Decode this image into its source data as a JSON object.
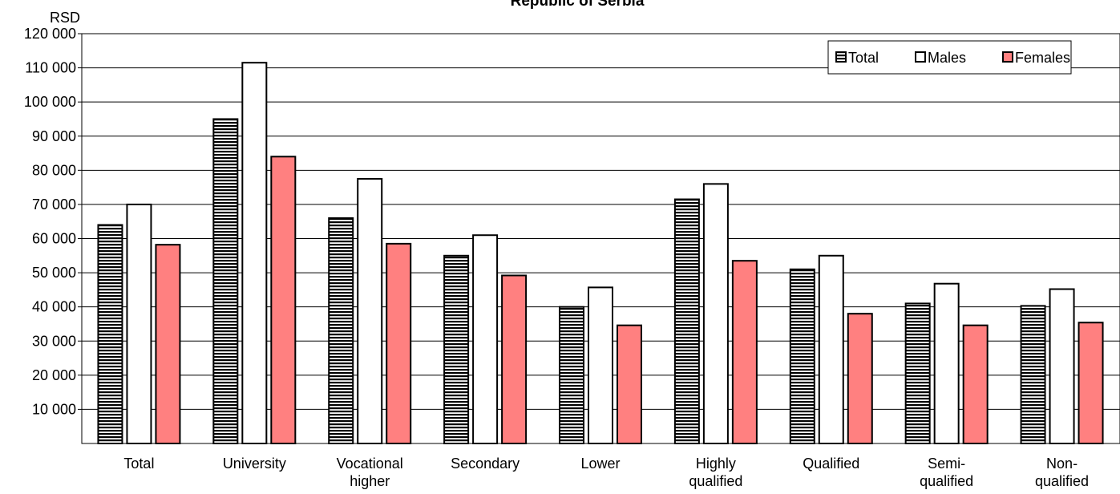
{
  "chart_data": {
    "type": "bar",
    "title": "Republic of Serbia",
    "ylabel": "RSD",
    "xlabel": "",
    "ylim": [
      0,
      120000
    ],
    "y_ticks": [
      10000,
      20000,
      30000,
      40000,
      50000,
      60000,
      70000,
      80000,
      90000,
      100000,
      110000,
      120000
    ],
    "y_tick_labels": [
      "10 000",
      "20 000",
      "30 000",
      "40 000",
      "50 000",
      "60 000",
      "70 000",
      "80 000",
      "90 000",
      "100 000",
      "110 000",
      "120 000"
    ],
    "grid": true,
    "legend_position": "top-right",
    "categories": [
      [
        "Total"
      ],
      [
        "University"
      ],
      [
        "Vocational",
        "higher"
      ],
      [
        "Secondary"
      ],
      [
        "Lower"
      ],
      [
        "Highly",
        "qualified"
      ],
      [
        "Qualified"
      ],
      [
        "Semi-",
        "qualified"
      ],
      [
        "Non-",
        "qualified"
      ]
    ],
    "series": [
      {
        "name": "Total",
        "fill": "#000000",
        "pattern": "horizontal-stripes",
        "values": [
          64000,
          95000,
          66000,
          55000,
          40000,
          71500,
          51000,
          41000,
          40300
        ]
      },
      {
        "name": "Males",
        "fill": "#ffffff",
        "pattern": "none",
        "values": [
          70000,
          111500,
          77500,
          61000,
          45700,
          76000,
          55000,
          46800,
          45200
        ]
      },
      {
        "name": "Females",
        "fill": "#ff8080",
        "pattern": "none",
        "values": [
          58200,
          84000,
          58500,
          49200,
          34600,
          53500,
          38000,
          34600,
          35400
        ]
      }
    ]
  }
}
